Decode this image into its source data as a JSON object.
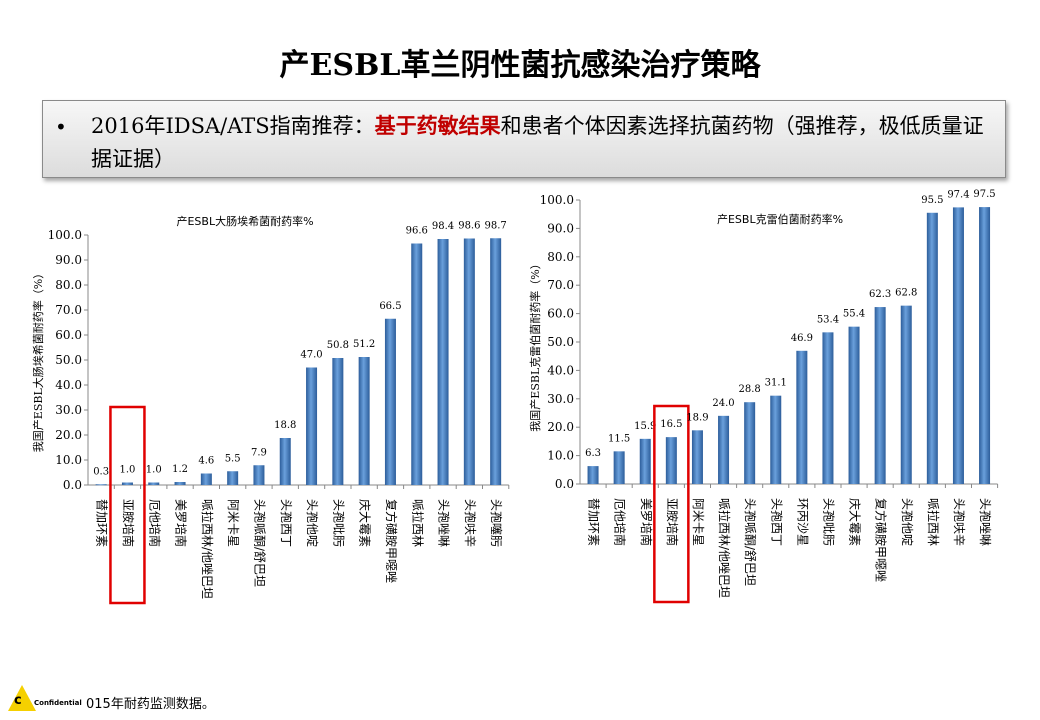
{
  "title": "产ESBL革兰阴性菌抗感染治疗策略",
  "recommendation": {
    "bullet": "•",
    "prefix": "2016年IDSA/ATS指南推荐：",
    "highlight": "基于药敏结果",
    "suffix": "和患者个体因素选择抗菌药物（强推荐，极低质量证据证据）"
  },
  "footer": {
    "confidential": "Confidential",
    "note": "015年耐药监测数据。"
  },
  "colors": {
    "bar_top": "#6aa0dc",
    "bar_bottom": "#2c5d9a",
    "highlight_box": "#e00000",
    "text_red": "#c00000"
  },
  "chart_data": [
    {
      "type": "bar",
      "title": "产ESBL大肠埃希菌耐药率%",
      "ylabel": "我国产ESBL大肠埃希菌耐药率（%）",
      "ylim": [
        0,
        100
      ],
      "yticks": [
        "0.0",
        "10.0",
        "20.0",
        "30.0",
        "40.0",
        "50.0",
        "60.0",
        "70.0",
        "80.0",
        "90.0",
        "100.0"
      ],
      "highlighted_category": "亚胺培南",
      "categories": [
        "替加环素",
        "亚胺培南",
        "厄他培南",
        "美罗培南",
        "哌拉西林/他唑巴坦",
        "阿米卡星",
        "头孢哌酮/舒巴坦",
        "头孢西丁",
        "头孢他啶",
        "头孢吡肟",
        "庆大霉素",
        "复方磺胺甲噁唑",
        "哌拉西林",
        "头孢唑啉",
        "头孢呋辛",
        "头孢噻肟"
      ],
      "values": [
        0.3,
        1.0,
        1.0,
        1.2,
        4.6,
        5.5,
        7.9,
        18.8,
        47.0,
        50.8,
        51.2,
        66.5,
        96.6,
        98.4,
        98.6,
        98.7
      ],
      "labels": [
        "0.3",
        "1.0",
        "1.0",
        "1.2",
        "4.6",
        "5.5",
        "7.9",
        "18.8",
        "47.0",
        "50.8",
        "51.2",
        "66.5",
        "96.6",
        "98.4",
        "98.6",
        "98.7"
      ]
    },
    {
      "type": "bar",
      "title": "产ESBL克雷伯菌耐药率%",
      "ylabel": "我国产ESBL克雷伯菌耐药率（%）",
      "ylim": [
        0,
        100
      ],
      "yticks": [
        "0.0",
        "10.0",
        "20.0",
        "30.0",
        "40.0",
        "50.0",
        "60.0",
        "70.0",
        "80.0",
        "90.0",
        "100.0"
      ],
      "highlighted_category": "亚胺培南",
      "categories": [
        "替加环素",
        "厄他培南",
        "美罗培南",
        "亚胺培南",
        "阿米卡星",
        "哌拉西林/他唑巴坦",
        "头孢哌酮/舒巴坦",
        "头孢西丁",
        "环丙沙星",
        "头孢吡肟",
        "庆大霉素",
        "复方磺胺甲噁唑",
        "头孢他啶",
        "哌拉西林",
        "头孢呋辛",
        "头孢唑啉"
      ],
      "values": [
        6.3,
        11.5,
        15.9,
        16.5,
        18.9,
        24.0,
        28.8,
        31.1,
        46.9,
        53.4,
        55.4,
        62.3,
        62.8,
        95.5,
        97.4,
        97.5
      ],
      "labels": [
        "6.3",
        "11.5",
        "15.9",
        "16.5",
        "18.9",
        "24.0",
        "28.8",
        "31.1",
        "46.9",
        "53.4",
        "55.4",
        "62.3",
        "62.8",
        "95.5",
        "97.4",
        "97.5"
      ]
    }
  ]
}
